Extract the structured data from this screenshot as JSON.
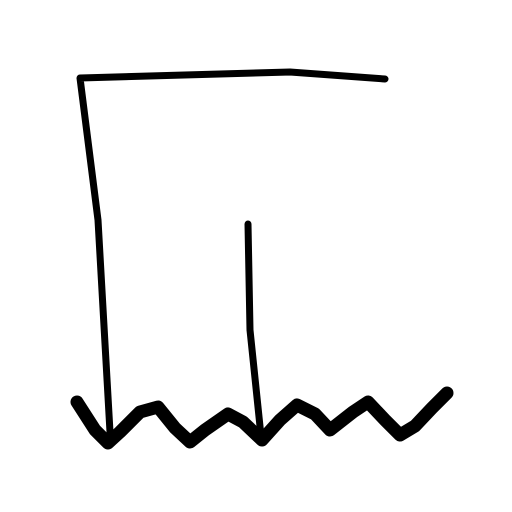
{
  "drawing": {
    "stroke_color": "#000000",
    "background_color": "#ffffff",
    "elements": [
      "bracket-line",
      "inner-vertical-line",
      "wavy-baseline"
    ]
  }
}
